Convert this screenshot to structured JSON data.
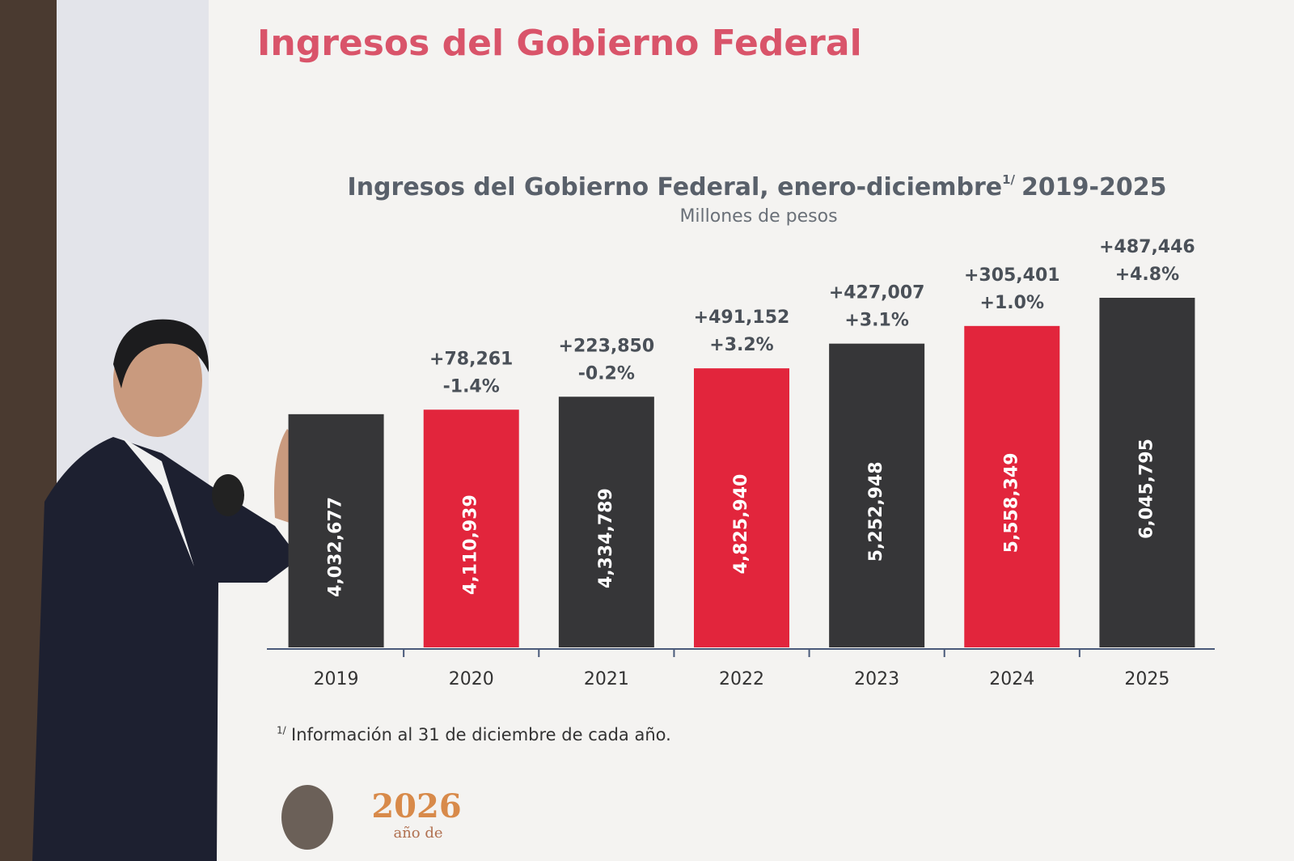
{
  "slide_title": "Ingresos del Gobierno Federal",
  "chart_data": {
    "type": "bar",
    "title": "Ingresos del Gobierno Federal, enero-diciembre",
    "title_marker": "1/",
    "title_period": "2019-2025",
    "subtitle": "Millones de pesos",
    "categories": [
      "2019",
      "2020",
      "2021",
      "2022",
      "2023",
      "2024",
      "2025"
    ],
    "values": [
      4032677,
      4110939,
      4334789,
      4825940,
      5252948,
      5558349,
      6045795
    ],
    "value_labels": [
      "4,032,677",
      "4,110,939",
      "4,334,789",
      "4,825,940",
      "5,252,948",
      "5,558,349",
      "6,045,795"
    ],
    "change_labels": [
      null,
      "+78,261",
      "+223,850",
      "+491,152",
      "+427,007",
      "+305,401",
      "+487,446"
    ],
    "growth_labels": [
      null,
      "-1.4%",
      "-0.2%",
      "+3.2%",
      "+3.1%",
      "+1.0%",
      "+4.8%"
    ],
    "colors": [
      "#363638",
      "#e2253c",
      "#363638",
      "#e2253c",
      "#363638",
      "#e2253c",
      "#363638"
    ],
    "footnote_marker": "1/",
    "footnote": "Información al 31 de diciembre de cada año."
  },
  "logo": {
    "year": "2026",
    "text": "año de"
  }
}
